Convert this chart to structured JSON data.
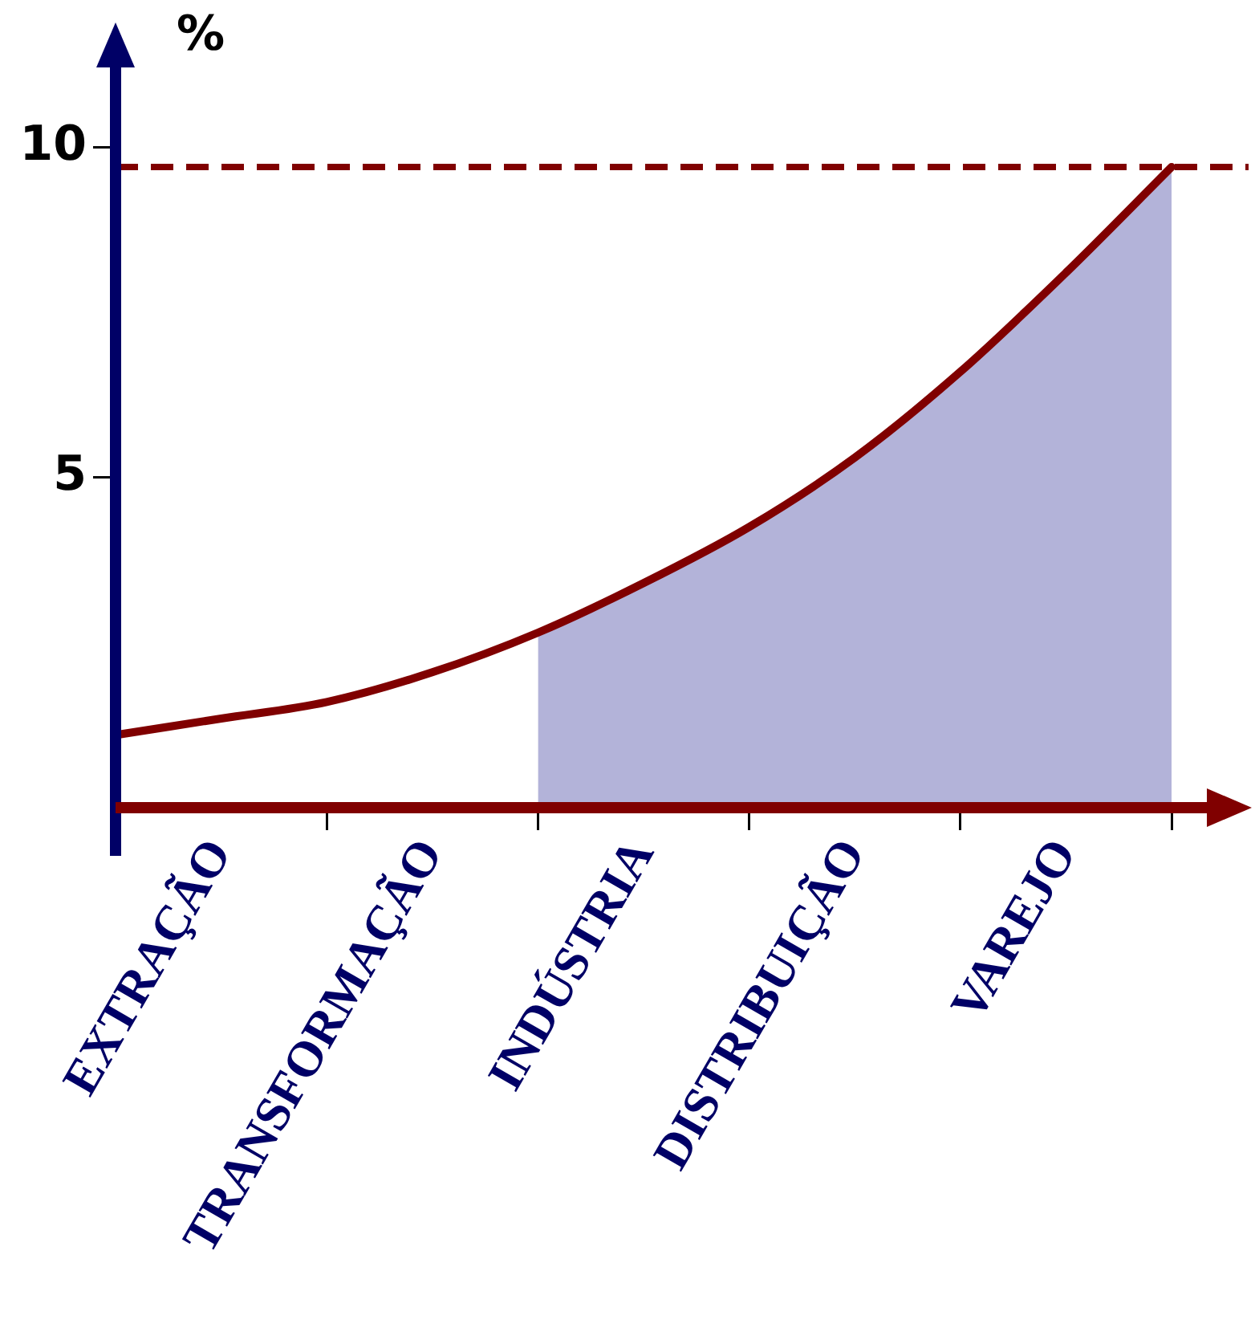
{
  "chart_data": {
    "type": "line",
    "ylabel": "%",
    "ylim": [
      0,
      11.5
    ],
    "yticks": [
      5,
      10
    ],
    "categories": [
      null,
      "EXTRAÇÃO",
      null,
      "TRANSFORMAÇÃO",
      null,
      "INDÚSTRIA",
      null,
      "DISTRIBUIÇÃO",
      null,
      "VAREJO",
      null
    ],
    "grid": false,
    "legend": false,
    "marker": "none",
    "line_style": "solid",
    "series": [
      {
        "type": "area",
        "color": "#8080c0",
        "values": [
          null,
          null,
          null,
          null,
          2.65,
          3.4,
          4.25,
          5.3,
          6.6,
          8.1,
          9.7
        ]
      },
      {
        "type": "line",
        "color": "#800000",
        "values": [
          1.1,
          1.35,
          1.6,
          2.05,
          2.65,
          3.4,
          4.25,
          5.3,
          6.6,
          8.1,
          9.7
        ]
      }
    ],
    "ref_lines": [
      {
        "axis": "y",
        "value": 9.7,
        "color": "#800000",
        "line_style": "dashed"
      }
    ]
  }
}
